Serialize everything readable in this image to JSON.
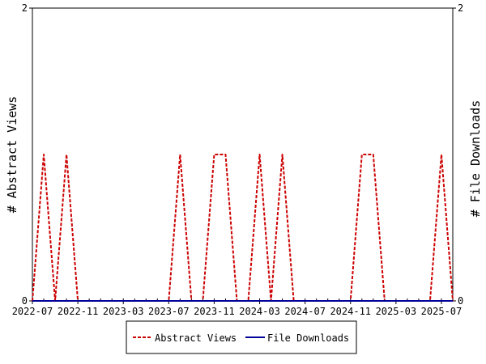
{
  "chart_data": {
    "type": "line",
    "x_tick_labels": [
      "2022-07",
      "2022-11",
      "2023-03",
      "2023-07",
      "2023-11",
      "2024-03",
      "2024-07",
      "2024-11",
      "2025-03",
      "2025-07"
    ],
    "x_tick_months": [
      "2022-07",
      "2022-11",
      "2023-03",
      "2023-07",
      "2023-11",
      "2024-03",
      "2024-07",
      "2024-11",
      "2025-03",
      "2025-07"
    ],
    "x_range": [
      "2022-07",
      "2025-08"
    ],
    "y_left_label": "# Abstract Views",
    "y_right_label": "# File Downloads",
    "y_left_ticks": [
      "0",
      "2"
    ],
    "y_right_ticks": [
      "0",
      "2"
    ],
    "y_left_range": [
      0,
      2
    ],
    "y_right_range": [
      0,
      2
    ],
    "legend_position": "bottom",
    "grid": false,
    "series": [
      {
        "name": "Abstract Views",
        "axis": "left",
        "color": "#cc0000",
        "style": "dashed",
        "months": [
          "2022-07",
          "2022-08",
          "2022-09",
          "2022-10",
          "2022-11",
          "2022-12",
          "2023-01",
          "2023-02",
          "2023-03",
          "2023-04",
          "2023-05",
          "2023-06",
          "2023-07",
          "2023-08",
          "2023-09",
          "2023-10",
          "2023-11",
          "2023-12",
          "2024-01",
          "2024-02",
          "2024-03",
          "2024-04",
          "2024-05",
          "2024-06",
          "2024-07",
          "2024-08",
          "2024-09",
          "2024-10",
          "2024-11",
          "2024-12",
          "2025-01",
          "2025-02",
          "2025-03",
          "2025-04",
          "2025-05",
          "2025-06",
          "2025-07",
          "2025-08"
        ],
        "values": [
          0,
          1,
          0,
          1,
          0,
          0,
          0,
          0,
          0,
          0,
          0,
          0,
          0,
          1,
          0,
          0,
          1,
          1,
          0,
          0,
          1,
          0,
          1,
          0,
          0,
          0,
          0,
          0,
          0,
          1,
          1,
          0,
          0,
          0,
          0,
          0,
          1,
          0
        ]
      },
      {
        "name": "File Downloads",
        "axis": "right",
        "color": "#000099",
        "style": "solid",
        "months": [
          "2022-07",
          "2025-08"
        ],
        "values": [
          0,
          0
        ]
      }
    ]
  }
}
